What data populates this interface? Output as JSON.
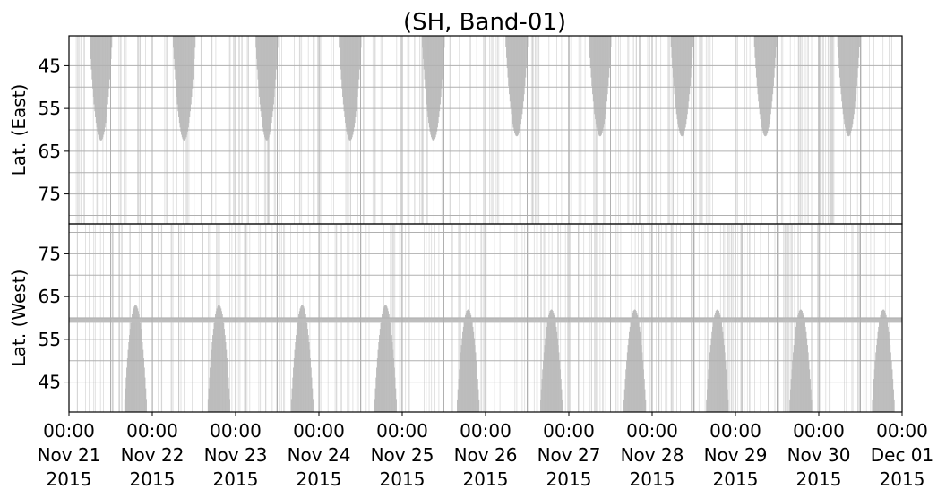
{
  "chart_data": {
    "type": "scatter",
    "title": "(SH, Band-01)",
    "x_ticks": [
      "2015-11-21",
      "2015-11-22",
      "2015-11-23",
      "2015-11-24",
      "2015-11-25",
      "2015-11-26",
      "2015-11-27",
      "2015-11-28",
      "2015-11-29",
      "2015-11-30",
      "2015-12-01"
    ],
    "x_tick_labels": [
      [
        "00:00",
        "Nov 21",
        "2015"
      ],
      [
        "00:00",
        "Nov 22",
        "2015"
      ],
      [
        "00:00",
        "Nov 23",
        "2015"
      ],
      [
        "00:00",
        "Nov 24",
        "2015"
      ],
      [
        "00:00",
        "Nov 25",
        "2015"
      ],
      [
        "00:00",
        "Nov 26",
        "2015"
      ],
      [
        "00:00",
        "Nov 27",
        "2015"
      ],
      [
        "00:00",
        "Nov 28",
        "2015"
      ],
      [
        "00:00",
        "Nov 29",
        "2015"
      ],
      [
        "00:00",
        "Nov 30",
        "2015"
      ],
      [
        "00:00",
        "Dec 01",
        "2015"
      ]
    ],
    "xlim": [
      "2015-11-21T00:00",
      "2015-12-01T00:00"
    ],
    "grid": true,
    "marker_color": "#bdbdbd",
    "panels": [
      {
        "name": "east",
        "ylabel": "Lat. (East)",
        "ylim": [
          38,
          82
        ],
        "y_inverted": true,
        "yticks": [
          45,
          55,
          65,
          75
        ],
        "ytick_labels": [
          "45",
          "55",
          "65",
          "75"
        ],
        "coverage": [
          {
            "center": "2015-11-21T09:12",
            "half_width_hours": 3.3,
            "lat_min": 38,
            "lat_max": 62.5
          },
          {
            "center": "2015-11-22T09:12",
            "half_width_hours": 3.3,
            "lat_min": 38,
            "lat_max": 62.5
          },
          {
            "center": "2015-11-23T09:00",
            "half_width_hours": 3.3,
            "lat_min": 38,
            "lat_max": 62.5
          },
          {
            "center": "2015-11-24T09:00",
            "half_width_hours": 3.3,
            "lat_min": 38,
            "lat_max": 62.5
          },
          {
            "center": "2015-11-25T09:00",
            "half_width_hours": 3.3,
            "lat_min": 38,
            "lat_max": 62.5
          },
          {
            "center": "2015-11-26T09:00",
            "half_width_hours": 3.3,
            "lat_min": 38,
            "lat_max": 61.5
          },
          {
            "center": "2015-11-27T09:00",
            "half_width_hours": 3.3,
            "lat_min": 38,
            "lat_max": 61.5
          },
          {
            "center": "2015-11-28T08:36",
            "half_width_hours": 3.3,
            "lat_min": 38,
            "lat_max": 61.5
          },
          {
            "center": "2015-11-29T08:36",
            "half_width_hours": 3.3,
            "lat_min": 38,
            "lat_max": 61.5
          },
          {
            "center": "2015-11-30T08:36",
            "half_width_hours": 3.3,
            "lat_min": 38,
            "lat_max": 61.5
          }
        ]
      },
      {
        "name": "west",
        "ylabel": "Lat. (West)",
        "ylim": [
          38,
          82
        ],
        "y_inverted": false,
        "yticks": [
          45,
          55,
          65,
          75
        ],
        "ytick_labels": [
          "45",
          "55",
          "65",
          "75"
        ],
        "horizontal_band_lat": 59.5,
        "coverage": [
          {
            "center": "2015-11-21T19:12",
            "half_width_hours": 3.3,
            "lat_min": 38,
            "lat_max": 63
          },
          {
            "center": "2015-11-22T19:12",
            "half_width_hours": 3.3,
            "lat_min": 38,
            "lat_max": 63
          },
          {
            "center": "2015-11-23T19:12",
            "half_width_hours": 3.3,
            "lat_min": 38,
            "lat_max": 63
          },
          {
            "center": "2015-11-24T19:12",
            "half_width_hours": 3.3,
            "lat_min": 38,
            "lat_max": 63
          },
          {
            "center": "2015-11-25T19:00",
            "half_width_hours": 3.3,
            "lat_min": 38,
            "lat_max": 62
          },
          {
            "center": "2015-11-26T19:00",
            "half_width_hours": 3.3,
            "lat_min": 38,
            "lat_max": 62
          },
          {
            "center": "2015-11-27T19:00",
            "half_width_hours": 3.3,
            "lat_min": 38,
            "lat_max": 62
          },
          {
            "center": "2015-11-28T18:48",
            "half_width_hours": 3.3,
            "lat_min": 38,
            "lat_max": 62
          },
          {
            "center": "2015-11-29T18:48",
            "half_width_hours": 3.3,
            "lat_min": 38,
            "lat_max": 62
          },
          {
            "center": "2015-11-30T18:36",
            "half_width_hours": 3.3,
            "lat_min": 38,
            "lat_max": 62
          }
        ]
      }
    ]
  }
}
